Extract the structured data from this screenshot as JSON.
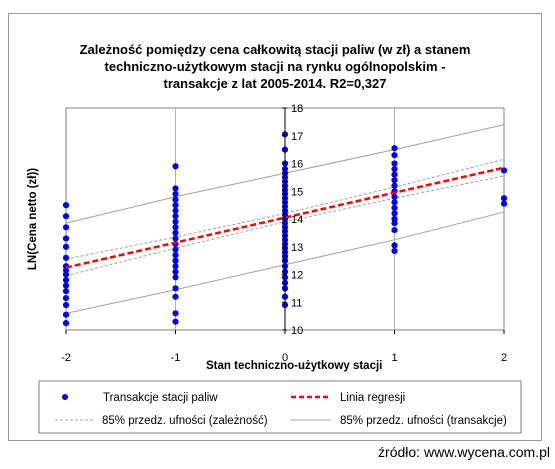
{
  "chart_data": {
    "type": "scatter",
    "title_lines": [
      "Zależność pomiędzy cena całkowitą stacji paliw (w zł) a stanem",
      "techniczno-użytkowym stacji na rynku ogólnopolskim  -",
      "transakcje  z lat 2005-2014.  R2=0,327"
    ],
    "xlabel": "Stan techniczno-użytkowy  stacji",
    "ylabel": "LN(Cena netto (zł))",
    "xlim": [
      -2,
      2
    ],
    "ylim": [
      10,
      18
    ],
    "x_ticks": [
      "-2",
      "-1",
      "0",
      "1",
      "2"
    ],
    "y_ticks": [
      "10",
      "11",
      "12",
      "13",
      "14",
      "15",
      "16",
      "17",
      "18"
    ],
    "grid": "vertical",
    "legend_position": "bottom",
    "series": [
      {
        "name": "Transakcje stacji paliw",
        "kind": "points",
        "color": "#0000ff",
        "points": [
          [
            -2,
            10.25
          ],
          [
            -2,
            10.55
          ],
          [
            -2,
            10.9
          ],
          [
            -2,
            11.15
          ],
          [
            -2,
            11.4
          ],
          [
            -2,
            11.6
          ],
          [
            -2,
            11.8
          ],
          [
            -2,
            12.0
          ],
          [
            -2,
            12.15
          ],
          [
            -2,
            12.3
          ],
          [
            -2,
            12.6
          ],
          [
            -2,
            13.0
          ],
          [
            -2,
            13.3
          ],
          [
            -2,
            13.7
          ],
          [
            -2,
            14.1
          ],
          [
            -2,
            14.5
          ],
          [
            -1,
            10.3
          ],
          [
            -1,
            10.6
          ],
          [
            -1,
            11.2
          ],
          [
            -1,
            11.5
          ],
          [
            -1,
            11.9
          ],
          [
            -1,
            12.1
          ],
          [
            -1,
            12.3
          ],
          [
            -1,
            12.5
          ],
          [
            -1,
            12.7
          ],
          [
            -1,
            12.9
          ],
          [
            -1,
            13.1
          ],
          [
            -1,
            13.3
          ],
          [
            -1,
            13.5
          ],
          [
            -1,
            13.7
          ],
          [
            -1,
            13.9
          ],
          [
            -1,
            14.1
          ],
          [
            -1,
            14.3
          ],
          [
            -1,
            14.5
          ],
          [
            -1,
            14.7
          ],
          [
            -1,
            14.9
          ],
          [
            -1,
            15.1
          ],
          [
            -1,
            15.9
          ],
          [
            0,
            10.9
          ],
          [
            0,
            11.2
          ],
          [
            0,
            11.5
          ],
          [
            0,
            11.7
          ],
          [
            0,
            11.9
          ],
          [
            0,
            12.1
          ],
          [
            0,
            12.3
          ],
          [
            0,
            12.5
          ],
          [
            0,
            12.65
          ],
          [
            0,
            12.8
          ],
          [
            0,
            12.95
          ],
          [
            0,
            13.1
          ],
          [
            0,
            13.25
          ],
          [
            0,
            13.4
          ],
          [
            0,
            13.55
          ],
          [
            0,
            13.7
          ],
          [
            0,
            13.85
          ],
          [
            0,
            14.0
          ],
          [
            0,
            14.15
          ],
          [
            0,
            14.3
          ],
          [
            0,
            14.45
          ],
          [
            0,
            14.6
          ],
          [
            0,
            14.75
          ],
          [
            0,
            14.9
          ],
          [
            0,
            15.05
          ],
          [
            0,
            15.2
          ],
          [
            0,
            15.35
          ],
          [
            0,
            15.5
          ],
          [
            0,
            15.65
          ],
          [
            0,
            15.8
          ],
          [
            0,
            16.0
          ],
          [
            0,
            16.5
          ],
          [
            0,
            17.05
          ],
          [
            1,
            12.85
          ],
          [
            1,
            13.05
          ],
          [
            1,
            13.6
          ],
          [
            1,
            13.85
          ],
          [
            1,
            14.0
          ],
          [
            1,
            14.2
          ],
          [
            1,
            14.4
          ],
          [
            1,
            14.6
          ],
          [
            1,
            14.8
          ],
          [
            1,
            15.0
          ],
          [
            1,
            15.2
          ],
          [
            1,
            15.4
          ],
          [
            1,
            15.6
          ],
          [
            1,
            15.8
          ],
          [
            1,
            16.0
          ],
          [
            1,
            16.3
          ],
          [
            1,
            16.55
          ],
          [
            2,
            14.55
          ],
          [
            2,
            14.75
          ],
          [
            2,
            15.75
          ]
        ]
      },
      {
        "name": "Linia regresji",
        "kind": "line",
        "color": "#ff0000",
        "dashed": true,
        "x": [
          -2,
          2
        ],
        "y": [
          12.25,
          15.85
        ]
      },
      {
        "name": "85% przedz. ufności (zależność)",
        "kind": "band",
        "color": "#a0a0a0",
        "dashed": true,
        "x": [
          -2,
          -1,
          0,
          1,
          2
        ],
        "lower": [
          11.95,
          12.95,
          13.9,
          14.75,
          15.55
        ],
        "upper": [
          12.55,
          13.35,
          14.2,
          15.15,
          16.15
        ]
      },
      {
        "name": "85% przedz. ufności (transakcje)",
        "kind": "band",
        "color": "#a0a0a0",
        "dashed": false,
        "x": [
          -2,
          -1,
          0,
          1,
          2
        ],
        "lower": [
          10.6,
          11.45,
          12.35,
          13.25,
          14.25
        ],
        "upper": [
          13.85,
          14.8,
          15.65,
          16.5,
          17.4
        ]
      }
    ]
  },
  "source_text": "źródło: www.wycena.com.pl"
}
